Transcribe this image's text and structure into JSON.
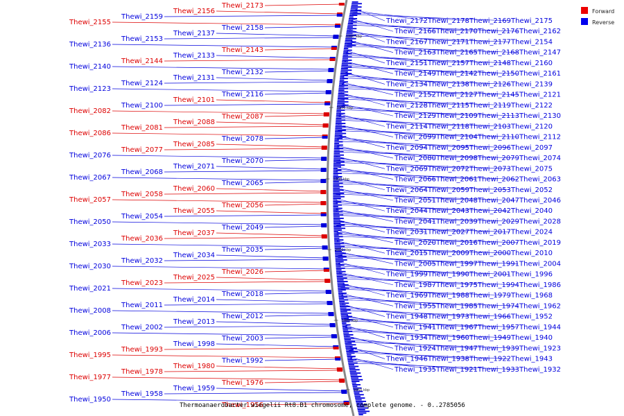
{
  "caption": "Thermoanaerobacter wiegelii Rt8.B1 chromosome, complete genome. - 0..2785056",
  "colors": {
    "forward": "#dd0000",
    "reverse": "#0000dd",
    "backbone": "#888888"
  },
  "legend": [
    {
      "label": "Forward",
      "color": "#ee0000"
    },
    {
      "label": "Reverse",
      "color": "#0000ee"
    }
  ],
  "ticks": [
    "2200 kbp",
    "2150 kbp",
    "2100 kbp",
    "2050 kbp",
    "2000 kbp",
    "1950 kbp"
  ],
  "left_labels": [
    {
      "text": "Thewi_2173",
      "strand": "forward"
    },
    {
      "text": "Thewi_2156",
      "strand": "forward"
    },
    {
      "text": "Thewi_2159",
      "strand": "reverse"
    },
    {
      "text": "Thewi_2155",
      "strand": "forward"
    },
    {
      "text": "Thewi_2158",
      "strand": "reverse"
    },
    {
      "text": "Thewi_2137",
      "strand": "reverse"
    },
    {
      "text": "Thewi_2153",
      "strand": "reverse"
    },
    {
      "text": "Thewi_2136",
      "strand": "reverse"
    },
    {
      "text": "Thewi_2143",
      "strand": "forward"
    },
    {
      "text": "Thewi_2133",
      "strand": "reverse"
    },
    {
      "text": "Thewi_2144",
      "strand": "forward"
    },
    {
      "text": "Thewi_2140",
      "strand": "reverse"
    },
    {
      "text": "Thewi_2132",
      "strand": "reverse"
    },
    {
      "text": "Thewi_2131",
      "strand": "reverse"
    },
    {
      "text": "Thewi_2124",
      "strand": "reverse"
    },
    {
      "text": "Thewi_2123",
      "strand": "reverse"
    },
    {
      "text": "Thewi_2116",
      "strand": "reverse"
    },
    {
      "text": "Thewi_2101",
      "strand": "forward"
    },
    {
      "text": "Thewi_2100",
      "strand": "reverse"
    },
    {
      "text": "Thewi_2082",
      "strand": "forward"
    },
    {
      "text": "Thewi_2087",
      "strand": "forward"
    },
    {
      "text": "Thewi_2088",
      "strand": "forward"
    },
    {
      "text": "Thewi_2081",
      "strand": "forward"
    },
    {
      "text": "Thewi_2086",
      "strand": "forward"
    },
    {
      "text": "Thewi_2078",
      "strand": "reverse"
    },
    {
      "text": "Thewi_2085",
      "strand": "forward"
    },
    {
      "text": "Thewi_2077",
      "strand": "forward"
    },
    {
      "text": "Thewi_2076",
      "strand": "reverse"
    },
    {
      "text": "Thewi_2070",
      "strand": "reverse"
    },
    {
      "text": "Thewi_2071",
      "strand": "reverse"
    },
    {
      "text": "Thewi_2068",
      "strand": "reverse"
    },
    {
      "text": "Thewi_2067",
      "strand": "reverse"
    },
    {
      "text": "Thewi_2065",
      "strand": "reverse"
    },
    {
      "text": "Thewi_2060",
      "strand": "forward"
    },
    {
      "text": "Thewi_2058",
      "strand": "forward"
    },
    {
      "text": "Thewi_2057",
      "strand": "forward"
    },
    {
      "text": "Thewi_2056",
      "strand": "forward"
    },
    {
      "text": "Thewi_2055",
      "strand": "forward"
    },
    {
      "text": "Thewi_2054",
      "strand": "reverse"
    },
    {
      "text": "Thewi_2050",
      "strand": "reverse"
    },
    {
      "text": "Thewi_2049",
      "strand": "reverse"
    },
    {
      "text": "Thewi_2037",
      "strand": "forward"
    },
    {
      "text": "Thewi_2036",
      "strand": "forward"
    },
    {
      "text": "Thewi_2033",
      "strand": "reverse"
    },
    {
      "text": "Thewi_2035",
      "strand": "reverse"
    },
    {
      "text": "Thewi_2034",
      "strand": "reverse"
    },
    {
      "text": "Thewi_2032",
      "strand": "reverse"
    },
    {
      "text": "Thewi_2030",
      "strand": "reverse"
    },
    {
      "text": "Thewi_2026",
      "strand": "forward"
    },
    {
      "text": "Thewi_2025",
      "strand": "forward"
    },
    {
      "text": "Thewi_2023",
      "strand": "forward"
    },
    {
      "text": "Thewi_2021",
      "strand": "reverse"
    },
    {
      "text": "Thewi_2018",
      "strand": "reverse"
    },
    {
      "text": "Thewi_2014",
      "strand": "reverse"
    },
    {
      "text": "Thewi_2011",
      "strand": "reverse"
    },
    {
      "text": "Thewi_2008",
      "strand": "reverse"
    },
    {
      "text": "Thewi_2012",
      "strand": "reverse"
    },
    {
      "text": "Thewi_2013",
      "strand": "reverse"
    },
    {
      "text": "Thewi_2002",
      "strand": "reverse"
    },
    {
      "text": "Thewi_2006",
      "strand": "reverse"
    },
    {
      "text": "Thewi_2003",
      "strand": "reverse"
    },
    {
      "text": "Thewi_1998",
      "strand": "reverse"
    },
    {
      "text": "Thewi_1993",
      "strand": "forward"
    },
    {
      "text": "Thewi_1995",
      "strand": "forward"
    },
    {
      "text": "Thewi_1992",
      "strand": "reverse"
    },
    {
      "text": "Thewi_1980",
      "strand": "forward"
    },
    {
      "text": "Thewi_1978",
      "strand": "forward"
    },
    {
      "text": "Thewi_1977",
      "strand": "forward"
    },
    {
      "text": "Thewi_1976",
      "strand": "forward"
    },
    {
      "text": "Thewi_1959",
      "strand": "reverse"
    },
    {
      "text": "Thewi_1958",
      "strand": "reverse"
    },
    {
      "text": "Thewi_1950",
      "strand": "reverse"
    },
    {
      "text": "Thewi_1956",
      "strand": "forward"
    }
  ],
  "right_labels": [
    "Thewi_2172",
    "Thewi_2178",
    "Thewi_2169",
    "Thewi_2175",
    "Thewi_2166",
    "Thewi_2170",
    "Thewi_2176",
    "Thewi_2162",
    "Thewi_2167",
    "Thewi_2171",
    "Thewi_2177",
    "Thewi_2154",
    "Thewi_2163",
    "Thewi_2165",
    "Thewi_2168",
    "Thewi_2147",
    "Thewi_2151",
    "Thewi_2157",
    "Thewi_2148",
    "Thewi_2160",
    "Thewi_2149",
    "Thewi_2142",
    "Thewi_2150",
    "Thewi_2161",
    "Thewi_2134",
    "Thewi_2138",
    "Thewi_2126",
    "Thewi_2139",
    "Thewi_2152",
    "Thewi_2127",
    "Thewi_2145",
    "Thewi_2121",
    "Thewi_2128",
    "Thewi_2115",
    "Thewi_2119",
    "Thewi_2122",
    "Thewi_2129",
    "Thewi_2109",
    "Thewi_2113",
    "Thewi_2130",
    "Thewi_2114",
    "Thewi_2118",
    "Thewi_2103",
    "Thewi_2120",
    "Thewi_2099",
    "Thewi_2104",
    "Thewi_2110",
    "Thewi_2112",
    "Thewi_2094",
    "Thewi_2095",
    "Thewi_2096",
    "Thewi_2097",
    "Thewi_2080",
    "Thewi_2098",
    "Thewi_2079",
    "Thewi_2074",
    "Thewi_2069",
    "Thewi_2072",
    "Thewi_2073",
    "Thewi_2075",
    "Thewi_2066",
    "Thewi_2061",
    "Thewi_2062",
    "Thewi_2063",
    "Thewi_2064",
    "Thewi_2059",
    "Thewi_2053",
    "Thewi_2052",
    "Thewi_2051",
    "Thewi_2048",
    "Thewi_2047",
    "Thewi_2046",
    "Thewi_2044",
    "Thewi_2043",
    "Thewi_2042",
    "Thewi_2040",
    "Thewi_2041",
    "Thewi_2039",
    "Thewi_2029",
    "Thewi_2028",
    "Thewi_2031",
    "Thewi_2027",
    "Thewi_2017",
    "Thewi_2024",
    "Thewi_2020",
    "Thewi_2016",
    "Thewi_2007",
    "Thewi_2019",
    "Thewi_2015",
    "Thewi_2009",
    "Thewi_2000",
    "Thewi_2010",
    "Thewi_2005",
    "Thewi_1997",
    "Thewi_1991",
    "Thewi_2004",
    "Thewi_1999",
    "Thewi_1990",
    "Thewi_2001",
    "Thewi_1996",
    "Thewi_1987",
    "Thewi_1975",
    "Thewi_1994",
    "Thewi_1986",
    "Thewi_1969",
    "Thewi_1988",
    "Thewi_1979",
    "Thewi_1968",
    "Thewi_1955",
    "Thewi_1985",
    "Thewi_1974",
    "Thewi_1962",
    "Thewi_1948",
    "Thewi_1973",
    "Thewi_1966",
    "Thewi_1952",
    "Thewi_1941",
    "Thewi_1967",
    "Thewi_1957",
    "Thewi_1944",
    "Thewi_1934",
    "Thewi_1960",
    "Thewi_1949",
    "Thewi_1940",
    "Thewi_1924",
    "Thewi_1947",
    "Thewi_1939",
    "Thewi_1923",
    "Thewi_1946",
    "Thewi_1938",
    "Thewi_1922",
    "Thewi_1943",
    "Thewi_1935",
    "Thewi_1921",
    "Thewi_1933",
    "Thewi_1932"
  ]
}
